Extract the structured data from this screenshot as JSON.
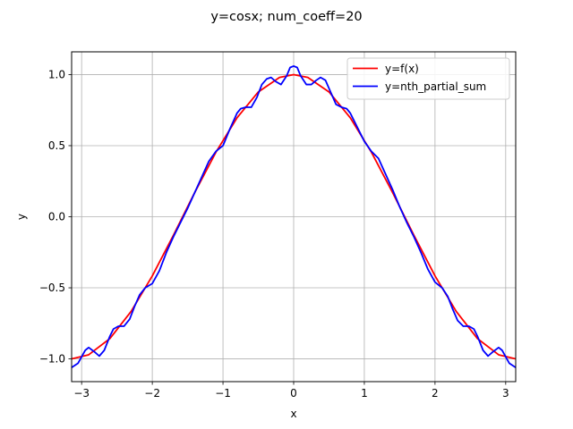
{
  "chart_data": {
    "type": "line",
    "title": "y=cosx; num_coeff=20",
    "xlabel": "x",
    "ylabel": "y",
    "xlim": [
      -3.14159,
      3.14159
    ],
    "ylim": [
      -1.16,
      1.16
    ],
    "xticks": [
      -3,
      -2,
      -1,
      0,
      1,
      2,
      3
    ],
    "xtick_labels": [
      "−3",
      "−2",
      "−1",
      "0",
      "1",
      "2",
      "3"
    ],
    "yticks": [
      -1.0,
      -0.5,
      0.0,
      0.5,
      1.0
    ],
    "ytick_labels": [
      "−1.0",
      "−0.5",
      "0.0",
      "0.5",
      "1.0"
    ],
    "grid": true,
    "legend_position": "top-right",
    "series": [
      {
        "name": "y=f(x)",
        "color": "#ff0000",
        "points": [
          [
            -3.1416,
            -1.0
          ],
          [
            -2.9,
            -0.971
          ],
          [
            -2.6,
            -0.857
          ],
          [
            -2.3,
            -0.666
          ],
          [
            -2.0,
            -0.416
          ],
          [
            -1.7,
            -0.129
          ],
          [
            -1.4,
            0.17
          ],
          [
            -1.1,
            0.454
          ],
          [
            -0.8,
            0.697
          ],
          [
            -0.5,
            0.878
          ],
          [
            -0.2,
            0.98
          ],
          [
            0.0,
            1.0
          ],
          [
            0.2,
            0.98
          ],
          [
            0.5,
            0.878
          ],
          [
            0.8,
            0.697
          ],
          [
            1.1,
            0.454
          ],
          [
            1.4,
            0.17
          ],
          [
            1.7,
            -0.129
          ],
          [
            2.0,
            -0.416
          ],
          [
            2.3,
            -0.666
          ],
          [
            2.6,
            -0.857
          ],
          [
            2.9,
            -0.971
          ],
          [
            3.1416,
            -1.0
          ]
        ]
      },
      {
        "name": "y=nth_partial_sum",
        "color": "#0000ff",
        "points": [
          [
            -3.14,
            -1.06
          ],
          [
            -3.05,
            -1.03
          ],
          [
            -2.95,
            -0.94
          ],
          [
            -2.9,
            -0.92
          ],
          [
            -2.82,
            -0.95
          ],
          [
            -2.75,
            -0.98
          ],
          [
            -2.68,
            -0.94
          ],
          [
            -2.6,
            -0.84
          ],
          [
            -2.55,
            -0.79
          ],
          [
            -2.48,
            -0.77
          ],
          [
            -2.4,
            -0.77
          ],
          [
            -2.32,
            -0.72
          ],
          [
            -2.25,
            -0.63
          ],
          [
            -2.18,
            -0.55
          ],
          [
            -2.1,
            -0.5
          ],
          [
            -2.0,
            -0.47
          ],
          [
            -1.9,
            -0.38
          ],
          [
            -1.8,
            -0.25
          ],
          [
            -1.7,
            -0.14
          ],
          [
            -1.6,
            -0.04
          ],
          [
            -1.5,
            0.06
          ],
          [
            -1.4,
            0.17
          ],
          [
            -1.3,
            0.28
          ],
          [
            -1.2,
            0.39
          ],
          [
            -1.1,
            0.46
          ],
          [
            -1.0,
            0.5
          ],
          [
            -0.9,
            0.62
          ],
          [
            -0.8,
            0.73
          ],
          [
            -0.75,
            0.76
          ],
          [
            -0.68,
            0.77
          ],
          [
            -0.6,
            0.77
          ],
          [
            -0.52,
            0.84
          ],
          [
            -0.45,
            0.93
          ],
          [
            -0.38,
            0.97
          ],
          [
            -0.32,
            0.98
          ],
          [
            -0.25,
            0.95
          ],
          [
            -0.18,
            0.93
          ],
          [
            -0.1,
            0.99
          ],
          [
            -0.05,
            1.05
          ],
          [
            0.0,
            1.06
          ],
          [
            0.05,
            1.05
          ],
          [
            0.1,
            0.99
          ],
          [
            0.18,
            0.93
          ],
          [
            0.25,
            0.93
          ],
          [
            0.32,
            0.96
          ],
          [
            0.38,
            0.98
          ],
          [
            0.45,
            0.96
          ],
          [
            0.52,
            0.88
          ],
          [
            0.6,
            0.79
          ],
          [
            0.68,
            0.77
          ],
          [
            0.75,
            0.76
          ],
          [
            0.8,
            0.73
          ],
          [
            0.9,
            0.63
          ],
          [
            1.0,
            0.53
          ],
          [
            1.1,
            0.46
          ],
          [
            1.2,
            0.41
          ],
          [
            1.3,
            0.3
          ],
          [
            1.4,
            0.19
          ],
          [
            1.5,
            0.07
          ],
          [
            1.6,
            -0.04
          ],
          [
            1.7,
            -0.14
          ],
          [
            1.8,
            -0.25
          ],
          [
            1.9,
            -0.37
          ],
          [
            2.0,
            -0.46
          ],
          [
            2.1,
            -0.5
          ],
          [
            2.18,
            -0.56
          ],
          [
            2.25,
            -0.65
          ],
          [
            2.32,
            -0.73
          ],
          [
            2.4,
            -0.77
          ],
          [
            2.48,
            -0.77
          ],
          [
            2.55,
            -0.79
          ],
          [
            2.6,
            -0.84
          ],
          [
            2.68,
            -0.94
          ],
          [
            2.75,
            -0.98
          ],
          [
            2.82,
            -0.95
          ],
          [
            2.9,
            -0.92
          ],
          [
            2.95,
            -0.94
          ],
          [
            3.05,
            -1.03
          ],
          [
            3.14,
            -1.06
          ]
        ]
      }
    ]
  }
}
